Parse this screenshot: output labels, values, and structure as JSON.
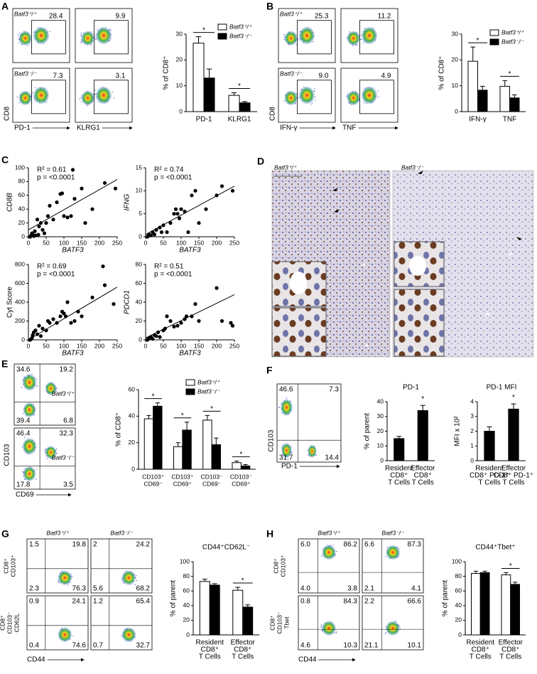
{
  "panels": [
    "A",
    "B",
    "C",
    "D",
    "E",
    "F",
    "G",
    "H"
  ],
  "flow_panels": {
    "A": {
      "y_label": "CD8",
      "x_labels": [
        "PD-1",
        "KLRG1"
      ],
      "genotypes": [
        "Batf3⁺/⁺",
        "Batf3⁻/⁻"
      ],
      "gates": [
        [
          "28.4",
          "9.9"
        ],
        [
          "7.3",
          "3.1"
        ]
      ]
    },
    "B": {
      "y_label": "CD8",
      "x_labels": [
        "IFN-γ",
        "TNF"
      ],
      "genotypes": [
        "Batf3⁺/⁺",
        "Batf3⁻/⁻"
      ],
      "gates": [
        [
          "25.3",
          "11.2"
        ],
        [
          "9.0",
          "4.9"
        ]
      ]
    },
    "E": {
      "y_label": "CD103",
      "x_label": "CD69",
      "genotypes": [
        "Batf3⁺/⁺",
        "Batf3⁻/⁻"
      ],
      "quadrants": [
        [
          "34.6",
          "19.2",
          "39.4",
          "6.8"
        ],
        [
          "46.4",
          "32.3",
          "17.8",
          "3.5"
        ]
      ]
    },
    "F": {
      "y_label": "CD103",
      "x_label": "PD-1",
      "quadrants": [
        [
          "46.6",
          "7.3",
          "31.7",
          "14.4"
        ]
      ]
    },
    "G": {
      "genotypes": [
        "Batf3⁺/⁺",
        "Batf3⁻/⁻"
      ],
      "row_labels": [
        [
          "CD8⁺",
          "CD103⁺"
        ],
        [
          "CD8⁺",
          "CD103⁻",
          "CD62L"
        ]
      ],
      "x_label": "CD44",
      "quadrants": [
        [
          [
            "1.5",
            "19.8",
            "2.3",
            "76.3"
          ],
          [
            "2",
            "24.2",
            "5.6",
            "68.2"
          ]
        ],
        [
          [
            "0.9",
            "24.1",
            "0.4",
            "74.6"
          ],
          [
            "1.2",
            "65.4",
            "0.7",
            "32.7"
          ]
        ]
      ]
    },
    "H": {
      "genotypes": [
        "Batf3⁺/⁺",
        "Batf3⁻/⁻"
      ],
      "row_labels": [
        [
          "CD8⁺",
          "CD103⁺"
        ],
        [
          "CD8⁺",
          "CD103⁻",
          "Tbet"
        ]
      ],
      "x_label": "CD44",
      "quadrants": [
        [
          [
            "6.0",
            "86.2",
            "4.0",
            "3.8"
          ],
          [
            "6.6",
            "87.3",
            "2.1",
            "4.1"
          ]
        ],
        [
          [
            "0.8",
            "84.3",
            "4.6",
            "10.3"
          ],
          [
            "2.2",
            "66.6",
            "21.1",
            "10.1"
          ]
        ]
      ]
    }
  },
  "ihc": {
    "labels": [
      "Batf3⁺/⁺",
      "Batf3⁻/⁻"
    ]
  },
  "chart_data": [
    {
      "type": "bar",
      "y_label": "% of CD8⁺",
      "categories": [
        [
          "PD-1"
        ],
        [
          "KLRG1"
        ]
      ],
      "ylim": [
        0,
        30
      ],
      "yticks": [
        0,
        10,
        20,
        30
      ],
      "significance": [
        "*",
        "*"
      ],
      "series": [
        {
          "name": "Batf3⁺/⁺",
          "color": "#ffffff",
          "values": [
            26.5,
            6.3
          ],
          "errors": [
            2.5,
            1
          ]
        },
        {
          "name": "Batf3⁻/⁻",
          "color": "#000000",
          "values": [
            13,
            3.4
          ],
          "errors": [
            3.5,
            0.5
          ]
        }
      ]
    },
    {
      "type": "bar",
      "y_label": "% of CD8⁺",
      "categories": [
        [
          "IFN-γ"
        ],
        [
          "TNF"
        ]
      ],
      "ylim": [
        0,
        30
      ],
      "yticks": [
        0,
        10,
        20,
        30
      ],
      "significance": [
        "*",
        "*"
      ],
      "series": [
        {
          "name": "Batf3⁺/⁺",
          "color": "#ffffff",
          "values": [
            19.5,
            9.8
          ],
          "errors": [
            5.5,
            2.2
          ]
        },
        {
          "name": "Batf3⁻/⁻",
          "color": "#000000",
          "values": [
            8.3,
            5.3
          ],
          "errors": [
            1.5,
            1.2
          ]
        }
      ]
    },
    {
      "type": "scatter",
      "y_label": "CD8B",
      "y_label_italic": true,
      "x_label": "BATF3",
      "annotations": [
        "R² = 0.61",
        "p = <0.0001"
      ],
      "xlim": [
        0,
        250
      ],
      "xticks": [
        0,
        50,
        100,
        150,
        200,
        250
      ],
      "ylim": [
        0,
        100
      ],
      "yticks": [
        0,
        20,
        40,
        60,
        80,
        100
      ],
      "x": [
        5,
        8,
        10,
        12,
        15,
        18,
        20,
        25,
        28,
        30,
        35,
        40,
        45,
        50,
        55,
        60,
        70,
        80,
        90,
        95,
        100,
        110,
        120,
        125,
        130,
        150,
        160,
        180,
        215,
        245
      ],
      "y": [
        0,
        2,
        5,
        3,
        1,
        8,
        2,
        25,
        3,
        15,
        20,
        10,
        5,
        20,
        30,
        45,
        25,
        50,
        62,
        63,
        30,
        28,
        30,
        97,
        55,
        70,
        20,
        40,
        78,
        70
      ],
      "fit": {
        "x": [
          0,
          250
        ],
        "y": [
          10,
          83
        ]
      }
    },
    {
      "type": "scatter",
      "y_label": "IFNG",
      "y_label_italic": true,
      "x_label": "BATF3",
      "annotations": [
        "R² = 0.74",
        "p = <0.0001"
      ],
      "xlim": [
        0,
        250
      ],
      "xticks": [
        0,
        50,
        100,
        150,
        200,
        250
      ],
      "ylim": [
        0,
        15
      ],
      "yticks": [
        0,
        5,
        10,
        15
      ],
      "x": [
        5,
        8,
        10,
        15,
        20,
        25,
        30,
        40,
        45,
        50,
        60,
        70,
        80,
        85,
        90,
        95,
        100,
        110,
        120,
        130,
        140,
        150,
        170,
        200,
        215,
        245
      ],
      "y": [
        0,
        0.2,
        0.5,
        0.3,
        1,
        0.5,
        1.5,
        2,
        1,
        2.5,
        1,
        3,
        5,
        6,
        5,
        4,
        6,
        5.5,
        1,
        9,
        10,
        3,
        6,
        9,
        11,
        10
      ],
      "fit": {
        "x": [
          0,
          250
        ],
        "y": [
          0.5,
          11
        ]
      }
    },
    {
      "type": "scatter",
      "y_label": "Cyt Score",
      "y_label_italic": false,
      "x_label": "BATF3",
      "annotations": [
        "R² = 0.69",
        "p = <0.0001"
      ],
      "xlim": [
        0,
        250
      ],
      "xticks": [
        0,
        50,
        100,
        150,
        200,
        250
      ],
      "ylim": [
        0,
        800
      ],
      "yticks": [
        0,
        200,
        400,
        600,
        800
      ],
      "x": [
        5,
        10,
        12,
        15,
        20,
        25,
        30,
        35,
        40,
        50,
        55,
        60,
        70,
        80,
        90,
        95,
        100,
        105,
        110,
        120,
        130,
        140,
        150,
        180,
        210,
        215,
        240
      ],
      "y": [
        0,
        20,
        50,
        80,
        100,
        60,
        150,
        40,
        120,
        100,
        200,
        180,
        220,
        180,
        250,
        300,
        280,
        250,
        400,
        180,
        200,
        300,
        250,
        450,
        780,
        580,
        380
      ],
      "fit": {
        "x": [
          0,
          250
        ],
        "y": [
          0,
          560
        ]
      }
    },
    {
      "type": "scatter",
      "y_label": "PDCD1",
      "y_label_italic": true,
      "x_label": "BATF3",
      "annotations": [
        "R² = 0.51",
        "p = <0.0001"
      ],
      "xlim": [
        0,
        250
      ],
      "xticks": [
        0,
        50,
        100,
        150,
        200,
        250
      ],
      "ylim": [
        0,
        80
      ],
      "yticks": [
        0,
        20,
        40,
        60,
        80
      ],
      "x": [
        5,
        8,
        10,
        15,
        20,
        25,
        30,
        35,
        40,
        50,
        55,
        60,
        70,
        80,
        90,
        100,
        110,
        115,
        130,
        140,
        150,
        200,
        215,
        240,
        245
      ],
      "y": [
        0,
        1,
        2,
        3,
        1,
        5,
        4,
        8,
        3,
        10,
        12,
        25,
        20,
        14,
        15,
        18,
        22,
        25,
        25,
        38,
        20,
        55,
        20,
        18,
        15
      ],
      "fit": {
        "x": [
          0,
          250
        ],
        "y": [
          2,
          48
        ]
      }
    },
    {
      "type": "bar",
      "y_label": "% of CD8⁺",
      "categories": [
        [
          "CD103⁺",
          "CD69⁻"
        ],
        [
          "CD103⁺",
          "CD69⁺"
        ],
        [
          "CD103⁻",
          "CD69⁻"
        ],
        [
          "CD103⁻",
          "CD69⁺"
        ]
      ],
      "ylim": [
        0,
        60
      ],
      "yticks": [
        0,
        20,
        40,
        60
      ],
      "significance": [
        "*",
        "*",
        "*",
        "*"
      ],
      "series": [
        {
          "name": "Batf3⁺/⁺",
          "color": "#ffffff",
          "values": [
            38,
            17,
            37,
            5
          ],
          "errors": [
            2.5,
            3,
            3.5,
            1.2
          ]
        },
        {
          "name": "Batf3⁻/⁻",
          "color": "#000000",
          "values": [
            47.5,
            29.5,
            18.5,
            2.5
          ],
          "errors": [
            2.5,
            6,
            5,
            1
          ]
        }
      ]
    },
    {
      "type": "bar",
      "title": "PD-1",
      "y_label": "% of parent",
      "categories": [
        [
          "Resident",
          "CD8⁺",
          "T Cells"
        ],
        [
          "Effector",
          "CD8⁺",
          "T Cells"
        ]
      ],
      "ylim": [
        0,
        40
      ],
      "yticks": [
        0,
        10,
        20,
        30,
        40
      ],
      "significance": [
        null,
        "*"
      ],
      "series": [
        {
          "color": "#000000",
          "values": [
            15,
            34
          ],
          "errors": [
            1.5,
            3.5
          ]
        }
      ]
    },
    {
      "type": "bar",
      "title": "PD-1 MFI",
      "y_label": "MFI x 10²",
      "categories": [
        [
          "Resident",
          "CD8⁺ PD-1⁺",
          "T Cells"
        ],
        [
          "Effector",
          "CD8⁺ PD-1⁺",
          "T Cells"
        ]
      ],
      "ylim": [
        0,
        4
      ],
      "yticks": [
        0,
        1,
        2,
        3,
        4
      ],
      "significance": [
        null,
        "*"
      ],
      "series": [
        {
          "color": "#000000",
          "values": [
            2,
            3.5
          ],
          "errors": [
            0.3,
            0.35
          ]
        }
      ]
    },
    {
      "type": "bar",
      "title": "CD44⁺CD62L⁻",
      "y_label": "% of parent",
      "categories": [
        [
          "Resident",
          "CD8⁺",
          "T Cells"
        ],
        [
          "Effector",
          "CD8⁺",
          "T Cells"
        ]
      ],
      "ylim": [
        0,
        100
      ],
      "yticks": [
        0,
        20,
        40,
        60,
        80,
        100
      ],
      "significance": [
        null,
        "*"
      ],
      "series": [
        {
          "color": "#ffffff",
          "values": [
            73,
            61
          ],
          "errors": [
            3,
            4
          ]
        },
        {
          "color": "#000000",
          "values": [
            68,
            38
          ],
          "errors": [
            2,
            3
          ]
        }
      ]
    },
    {
      "type": "bar",
      "title": "CD44⁺Tbet⁺",
      "y_label": "% of parent",
      "categories": [
        [
          "Resident",
          "CD8⁺",
          "T Cells"
        ],
        [
          "Effector",
          "CD8⁺",
          "T Cells"
        ]
      ],
      "ylim": [
        0,
        100
      ],
      "yticks": [
        0,
        20,
        40,
        60,
        80,
        100
      ],
      "significance": [
        null,
        "*"
      ],
      "series": [
        {
          "color": "#ffffff",
          "values": [
            84,
            82
          ],
          "errors": [
            3,
            3
          ]
        },
        {
          "color": "#000000",
          "values": [
            85,
            69
          ],
          "errors": [
            2,
            3
          ]
        }
      ]
    }
  ]
}
